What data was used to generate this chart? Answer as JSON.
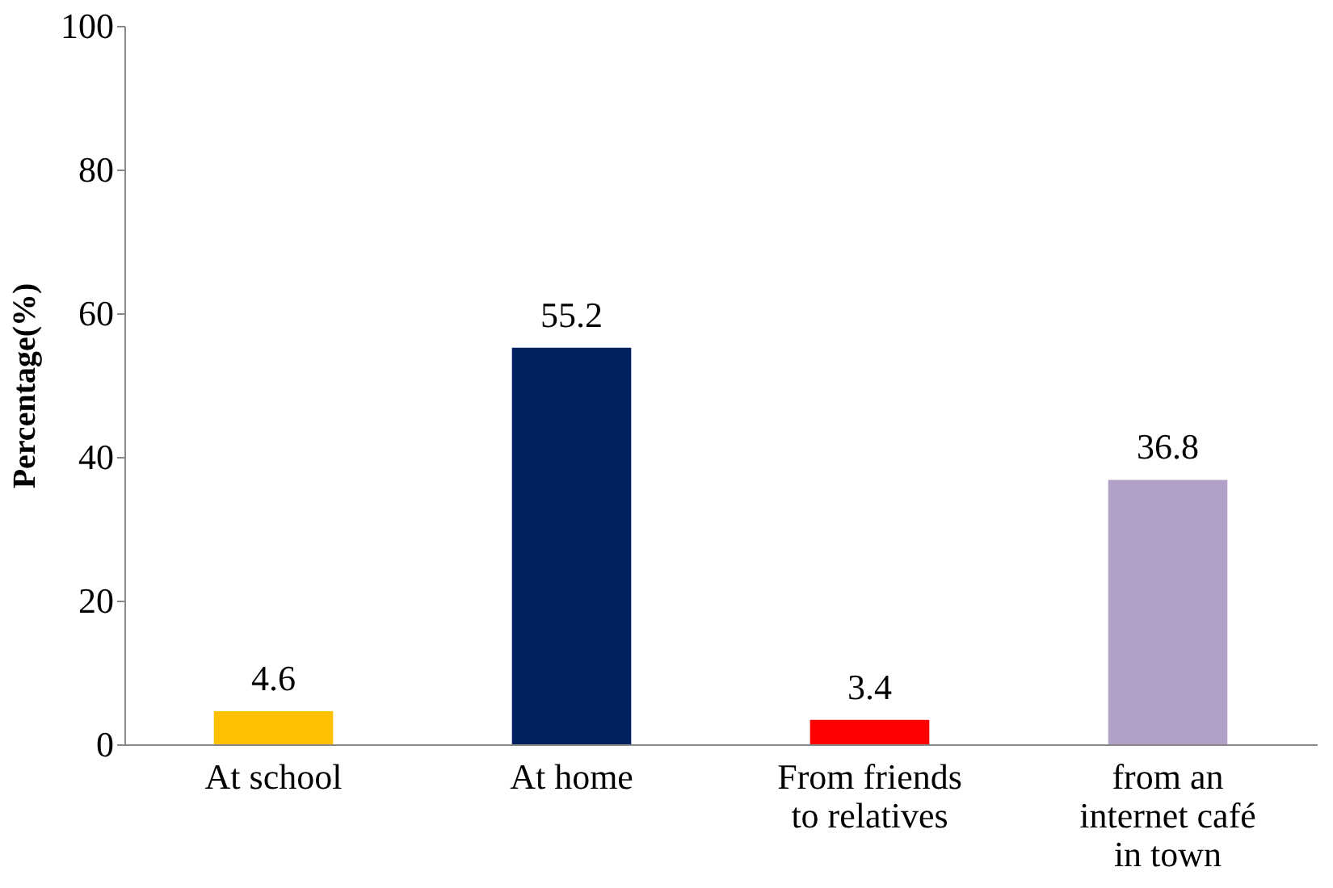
{
  "chart_data": {
    "type": "bar",
    "ylabel": "Percentage(%)",
    "categories": [
      "At school",
      "At home",
      "From friends to relatives",
      "from an internet café in town"
    ],
    "values": [
      4.6,
      55.2,
      3.4,
      36.8
    ],
    "colors": [
      "#ffc000",
      "#002060",
      "#ff0000",
      "#b1a0c7"
    ],
    "ylim": [
      0,
      100
    ],
    "yticks": [
      0,
      20,
      40,
      60,
      80,
      100
    ],
    "data_labels": true,
    "grid": false
  }
}
